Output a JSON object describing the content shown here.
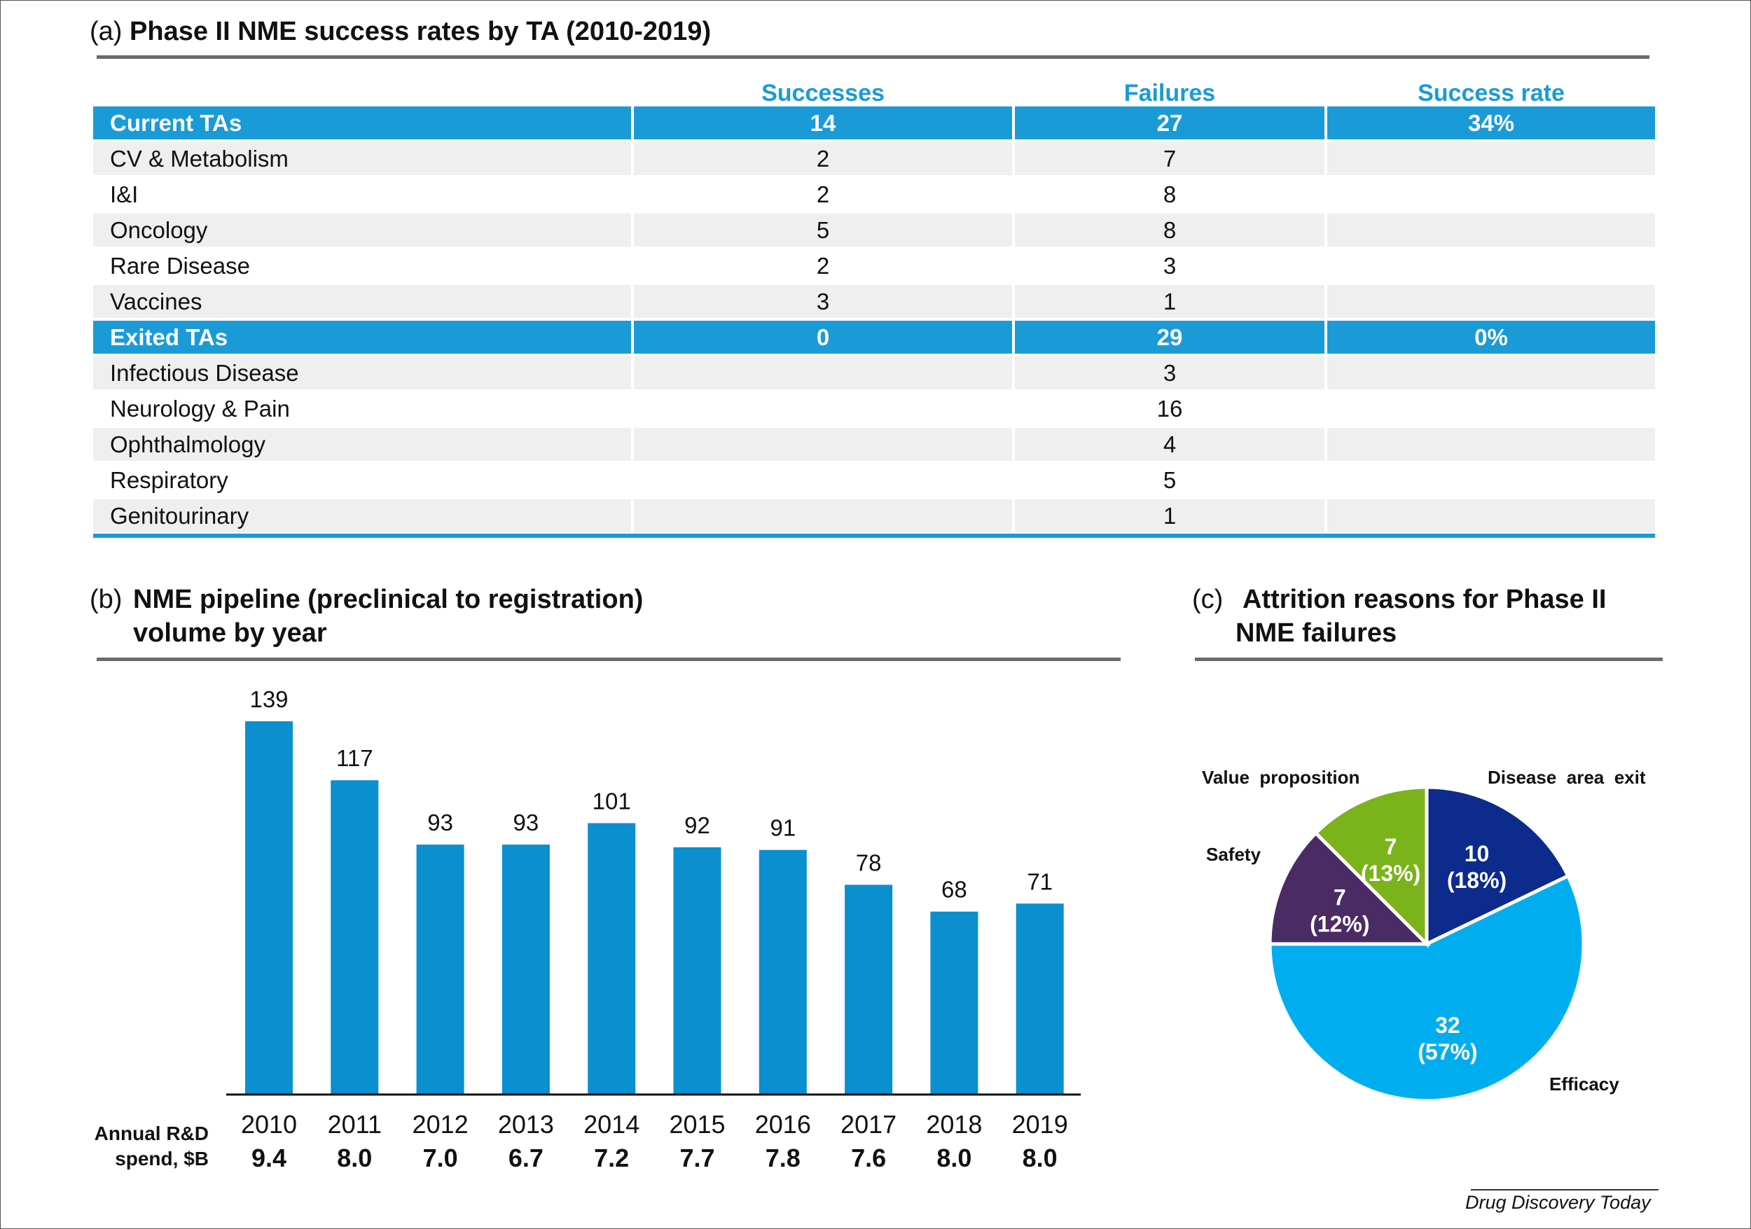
{
  "panel_a": {
    "label": "(a)",
    "title": "Phase II  NME success rates by TA (2010-2019)",
    "headers": [
      "Successes",
      "Failures",
      "Success rate"
    ],
    "rows": [
      {
        "name": "Current TAs",
        "successes": "14",
        "failures": "27",
        "rate": "34%",
        "group": true
      },
      {
        "name": "CV & Metabolism",
        "successes": "2",
        "failures": "7",
        "rate": ""
      },
      {
        "name": "I&I",
        "successes": "2",
        "failures": "8",
        "rate": ""
      },
      {
        "name": "Oncology",
        "successes": "5",
        "failures": "8",
        "rate": ""
      },
      {
        "name": "Rare Disease",
        "successes": "2",
        "failures": "3",
        "rate": ""
      },
      {
        "name": "Vaccines",
        "successes": "3",
        "failures": "1",
        "rate": ""
      },
      {
        "name": "Exited TAs",
        "successes": "0",
        "failures": "29",
        "rate": "0%",
        "group": true
      },
      {
        "name": "Infectious Disease",
        "successes": "",
        "failures": "3",
        "rate": ""
      },
      {
        "name": "Neurology & Pain",
        "successes": "",
        "failures": "16",
        "rate": ""
      },
      {
        "name": "Ophthalmology",
        "successes": "",
        "failures": "4",
        "rate": ""
      },
      {
        "name": "Respiratory",
        "successes": "",
        "failures": "5",
        "rate": ""
      },
      {
        "name": "Genitourinary",
        "successes": "",
        "failures": "1",
        "rate": ""
      }
    ]
  },
  "panel_b": {
    "label": "(b)",
    "title_line1": "NME pipeline (preclinical to registration)",
    "title_line2": "volume by year",
    "spend_label_line1": "Annual  R&D",
    "spend_label_line2": "spend,  $B",
    "spend": [
      "9.4",
      "8.0",
      "7.0",
      "6.7",
      "7.2",
      "7.7",
      "7.8",
      "7.6",
      "8.0",
      "8.0"
    ]
  },
  "panel_c": {
    "label": "(c)",
    "title_line1": "Attrition reasons for Phase II",
    "title_line2": "NME failures"
  },
  "chart_data": [
    {
      "type": "bar",
      "title": "NME pipeline (preclinical to registration) volume by year",
      "categories": [
        "2010",
        "2011",
        "2012",
        "2013",
        "2014",
        "2015",
        "2016",
        "2017",
        "2018",
        "2019"
      ],
      "values": [
        139,
        117,
        93,
        93,
        101,
        92,
        91,
        78,
        68,
        71
      ],
      "xlabel": "",
      "ylabel": "",
      "ylim": [
        0,
        139
      ],
      "color": "#0a8fcf"
    },
    {
      "type": "pie",
      "title": "Attrition reasons for Phase II NME failures",
      "slices": [
        {
          "name": "Disease  area  exit",
          "value": 10,
          "pct": "(18%)",
          "color": "#0c2b8c"
        },
        {
          "name": "Efficacy",
          "value": 32,
          "pct": "(57%)",
          "color": "#00aeef"
        },
        {
          "name": "Safety",
          "value": 7,
          "pct": "(12%)",
          "color": "#4a2b63"
        },
        {
          "name": "Value  proposition",
          "value": 7,
          "pct": "(13%)",
          "color": "#7ab31a"
        }
      ]
    }
  ],
  "source": "Drug Discovery Today"
}
